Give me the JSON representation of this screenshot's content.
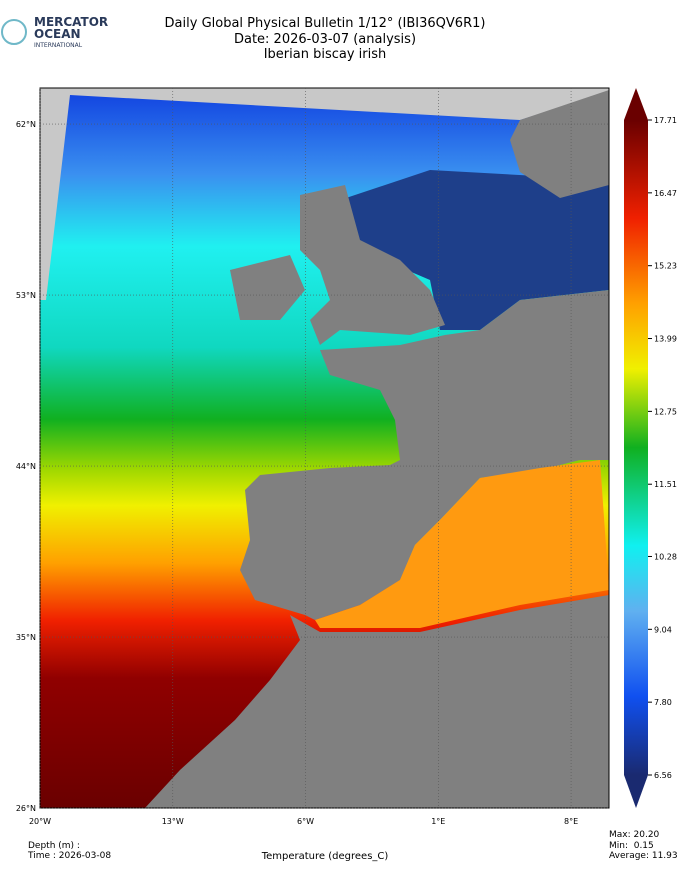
{
  "header": {
    "logo": [
      "MERCATOR",
      "OCEAN",
      "INTERNATIONAL"
    ],
    "title": [
      "Daily Global Physical Bulletin 1/12° (IBI36QV6R1)",
      "Date: 2026-03-07 (analysis)",
      "Iberian biscay irish"
    ]
  },
  "map": {
    "xlim": [
      -20,
      10
    ],
    "ylim": [
      26,
      63.9
    ],
    "lat_ticks": [
      {
        "value": 62,
        "label": "62°N"
      },
      {
        "value": 53,
        "label": "53°N"
      },
      {
        "value": 44,
        "label": "44°N"
      },
      {
        "value": 35,
        "label": "35°N"
      },
      {
        "value": 26,
        "label": "26°N"
      }
    ],
    "lon_ticks": [
      {
        "value": -20,
        "label": "20°W"
      },
      {
        "value": -13,
        "label": "13°W"
      },
      {
        "value": -6,
        "label": "6°W"
      },
      {
        "value": 1,
        "label": "1°E"
      },
      {
        "value": 8,
        "label": "8°E"
      }
    ]
  },
  "colorbar": {
    "lim": [
      6.56,
      17.71
    ],
    "ticks": [
      17.71,
      16.47,
      15.23,
      13.99,
      12.75,
      11.51,
      10.28,
      9.04,
      {
        "value": 7.8,
        "label": "7.80"
      },
      6.56
    ]
  },
  "footer": {
    "depth": "Depth (m) :",
    "time": "Time : 2026-03-08",
    "xlabel": "Temperature (degrees_C)",
    "stats": [
      "Max: 20.20",
      "Min:  0.15",
      "Average: 11.93"
    ]
  }
}
